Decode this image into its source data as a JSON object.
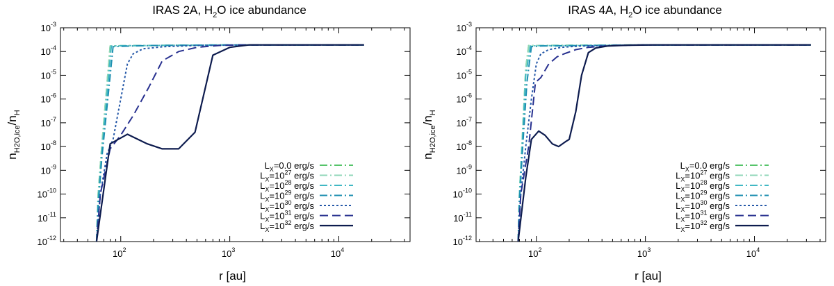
{
  "chart_data": [
    {
      "type": "line",
      "title_prefix": "IRAS 2A,  H",
      "title_sub": "2",
      "title_suffix": "O ice abundance",
      "xlabel": "r [au]",
      "ylabel": {
        "base1": "n",
        "sub1": "H2O,ice",
        "slash": "/",
        "base2": "n",
        "sub2": "H"
      },
      "x_scale": "log",
      "y_scale": "log",
      "xlim": [
        28,
        45000
      ],
      "ylim": [
        1e-12,
        0.001
      ],
      "x_ticks": [
        {
          "base": "10",
          "exp": "2"
        },
        {
          "base": "10",
          "exp": "3"
        },
        {
          "base": "10",
          "exp": "4"
        }
      ],
      "y_ticks": [
        {
          "base": "10",
          "exp": "-12"
        },
        {
          "base": "10",
          "exp": "-11"
        },
        {
          "base": "10",
          "exp": "-10"
        },
        {
          "base": "10",
          "exp": "-9"
        },
        {
          "base": "10",
          "exp": "-8"
        },
        {
          "base": "10",
          "exp": "-7"
        },
        {
          "base": "10",
          "exp": "-6"
        },
        {
          "base": "10",
          "exp": "-5"
        },
        {
          "base": "10",
          "exp": "-4"
        },
        {
          "base": "10",
          "exp": "-3"
        }
      ],
      "legend_position": "bottom-right",
      "series": [
        {
          "name_prefix": "L",
          "name_sub": "X",
          "name_eq": "=0.0",
          "name_exp": "",
          "name_unit": " erg/s",
          "color": "#56c46a",
          "dash": "11,4,2,4",
          "width": 2,
          "x": [
            60,
            62,
            67,
            80,
            100,
            200,
            1000,
            17000
          ],
          "y": [
            1e-12,
            1e-10,
            1e-08,
            0.00017,
            0.000175,
            0.00018,
            0.00019,
            0.00019
          ]
        },
        {
          "name_prefix": "L",
          "name_sub": "X",
          "name_eq": "=10",
          "name_exp": "27",
          "name_unit": " erg/s",
          "color": "#8fd7b8",
          "dash": "11,4,2,4",
          "width": 2,
          "x": [
            60,
            62,
            67,
            80,
            100,
            200,
            1000,
            17000
          ],
          "y": [
            1e-12,
            1e-10,
            1e-08,
            0.00017,
            0.000175,
            0.00018,
            0.00019,
            0.00019
          ]
        },
        {
          "name_prefix": "L",
          "name_sub": "X",
          "name_eq": "=10",
          "name_exp": "28",
          "name_unit": " erg/s",
          "color": "#41b8c4",
          "dash": "11,4,2,4",
          "width": 2,
          "x": [
            60,
            62,
            67,
            82,
            100,
            200,
            1000,
            17000
          ],
          "y": [
            1e-12,
            5e-11,
            5e-09,
            0.00017,
            0.000175,
            0.00018,
            0.00019,
            0.00019
          ]
        },
        {
          "name_prefix": "L",
          "name_sub": "X",
          "name_eq": "=10",
          "name_exp": "29",
          "name_unit": " erg/s",
          "color": "#1d8fb0",
          "dash": "11,4,2,4",
          "width": 2,
          "x": [
            60,
            62,
            67,
            85,
            120,
            200,
            1000,
            17000
          ],
          "y": [
            1e-12,
            3e-11,
            3e-09,
            0.00016,
            0.00017,
            0.00018,
            0.00019,
            0.00019
          ]
        },
        {
          "name_prefix": "L",
          "name_sub": "X",
          "name_eq": "=10",
          "name_exp": "30",
          "name_unit": " erg/s",
          "color": "#2558a8",
          "dash": "3,3",
          "width": 2,
          "x": [
            60,
            65,
            75,
            85,
            100,
            115,
            130,
            160,
            250,
            500,
            1000,
            2000,
            17000
          ],
          "y": [
            1e-12,
            1e-10,
            5e-09,
            2e-08,
            1e-06,
            3e-05,
            8e-05,
            0.00013,
            0.00016,
            0.00018,
            0.000185,
            0.00019,
            0.00019
          ]
        },
        {
          "name_prefix": "L",
          "name_sub": "X",
          "name_eq": "=10",
          "name_exp": "31",
          "name_unit": " erg/s",
          "color": "#27308f",
          "dash": "12,6",
          "width": 2,
          "x": [
            60,
            65,
            80,
            100,
            130,
            180,
            240,
            340,
            500,
            800,
            1200,
            2000,
            17000
          ],
          "y": [
            1e-12,
            1e-10,
            8e-09,
            3e-08,
            2e-07,
            3e-06,
            4e-05,
            0.0001,
            0.00015,
            0.00018,
            0.00019,
            0.00019,
            0.00019
          ]
        },
        {
          "name_prefix": "L",
          "name_sub": "X",
          "name_eq": "=10",
          "name_exp": "32",
          "name_unit": " erg/s",
          "color": "#0d1b4e",
          "dash": "",
          "width": 2.2,
          "x": [
            60,
            80,
            115,
            175,
            240,
            340,
            480,
            700,
            1000,
            1500,
            17000
          ],
          "y": [
            1e-12,
            1.3e-08,
            3.3e-08,
            1.3e-08,
            8e-09,
            8e-09,
            4e-08,
            7e-05,
            0.00015,
            0.00019,
            0.00019
          ]
        }
      ]
    },
    {
      "type": "line",
      "title_prefix": "IRAS 4A,  H",
      "title_sub": "2",
      "title_suffix": "O ice abundance",
      "xlabel": "r [au]",
      "ylabel": {
        "base1": "n",
        "sub1": "H2O,ice",
        "slash": "/",
        "base2": "n",
        "sub2": "H"
      },
      "x_scale": "log",
      "y_scale": "log",
      "xlim": [
        28,
        45000
      ],
      "ylim": [
        1e-12,
        0.001
      ],
      "x_ticks": [
        {
          "base": "10",
          "exp": "2"
        },
        {
          "base": "10",
          "exp": "3"
        },
        {
          "base": "10",
          "exp": "4"
        }
      ],
      "y_ticks": [
        {
          "base": "10",
          "exp": "-12"
        },
        {
          "base": "10",
          "exp": "-11"
        },
        {
          "base": "10",
          "exp": "-10"
        },
        {
          "base": "10",
          "exp": "-9"
        },
        {
          "base": "10",
          "exp": "-8"
        },
        {
          "base": "10",
          "exp": "-7"
        },
        {
          "base": "10",
          "exp": "-6"
        },
        {
          "base": "10",
          "exp": "-5"
        },
        {
          "base": "10",
          "exp": "-4"
        },
        {
          "base": "10",
          "exp": "-3"
        }
      ],
      "legend_position": "bottom-right",
      "series": [
        {
          "name_prefix": "L",
          "name_sub": "X",
          "name_eq": "=0.0",
          "name_exp": "",
          "name_unit": " erg/s",
          "color": "#56c46a",
          "dash": "11,4,2,4",
          "width": 2,
          "x": [
            68,
            70,
            75,
            80,
            85,
            100,
            300,
            1000,
            33000
          ],
          "y": [
            1e-12,
            1e-10,
            5e-08,
            2e-05,
            0.00018,
            0.00018,
            0.000185,
            0.00019,
            0.00019
          ]
        },
        {
          "name_prefix": "L",
          "name_sub": "X",
          "name_eq": "=10",
          "name_exp": "27",
          "name_unit": " erg/s",
          "color": "#8fd7b8",
          "dash": "11,4,2,4",
          "width": 2,
          "x": [
            68,
            70,
            75,
            80,
            85,
            100,
            300,
            1000,
            33000
          ],
          "y": [
            1e-12,
            1e-10,
            5e-08,
            2e-05,
            0.00018,
            0.00018,
            0.000185,
            0.00019,
            0.00019
          ]
        },
        {
          "name_prefix": "L",
          "name_sub": "X",
          "name_eq": "=10",
          "name_exp": "28",
          "name_unit": " erg/s",
          "color": "#41b8c4",
          "dash": "11,4,2,4",
          "width": 2,
          "x": [
            68,
            70,
            75,
            80,
            88,
            100,
            300,
            1000,
            33000
          ],
          "y": [
            1e-12,
            8e-11,
            3e-08,
            1e-05,
            0.00017,
            0.000175,
            0.00018,
            0.00019,
            0.00019
          ]
        },
        {
          "name_prefix": "L",
          "name_sub": "X",
          "name_eq": "=10",
          "name_exp": "29",
          "name_unit": " erg/s",
          "color": "#1d8fb0",
          "dash": "11,4,2,4",
          "width": 2,
          "x": [
            68,
            70,
            75,
            82,
            90,
            110,
            300,
            1000,
            33000
          ],
          "y": [
            1e-12,
            5e-11,
            1e-08,
            5e-06,
            0.00016,
            0.00017,
            0.00018,
            0.00019,
            0.00019
          ]
        },
        {
          "name_prefix": "L",
          "name_sub": "X",
          "name_eq": "=10",
          "name_exp": "30",
          "name_unit": " erg/s",
          "color": "#2558a8",
          "dash": "3,3",
          "width": 2,
          "x": [
            68,
            72,
            80,
            90,
            100,
            110,
            130,
            170,
            250,
            500,
            1000,
            33000
          ],
          "y": [
            1e-12,
            1e-10,
            1e-08,
            1e-06,
            3e-05,
            8e-05,
            0.00012,
            0.00015,
            0.00017,
            0.00018,
            0.00019,
            0.00019
          ]
        },
        {
          "name_prefix": "L",
          "name_sub": "X",
          "name_eq": "=10",
          "name_exp": "31",
          "name_unit": " erg/s",
          "color": "#27308f",
          "dash": "12,6",
          "width": 2,
          "x": [
            68,
            72,
            85,
            98,
            110,
            130,
            155,
            180,
            230,
            300,
            500,
            1000,
            33000
          ],
          "y": [
            1e-12,
            1e-10,
            1e-08,
            5e-06,
            8e-06,
            3e-05,
            6e-05,
            8e-05,
            0.00012,
            0.00015,
            0.00018,
            0.00019,
            0.00019
          ]
        },
        {
          "name_prefix": "L",
          "name_sub": "X",
          "name_eq": "=10",
          "name_exp": "32",
          "name_unit": " erg/s",
          "color": "#0d1b4e",
          "dash": "",
          "width": 2.2,
          "x": [
            68,
            80,
            90,
            105,
            120,
            140,
            160,
            185,
            200,
            230,
            260,
            300,
            350,
            450,
            700,
            1200,
            33000
          ],
          "y": [
            1e-12,
            5e-10,
            2e-08,
            4.5e-08,
            3e-08,
            1.3e-08,
            1e-08,
            1.6e-08,
            2e-08,
            3e-07,
            1e-05,
            9e-05,
            0.00014,
            0.00017,
            0.000185,
            0.00019,
            0.00019
          ]
        }
      ]
    }
  ]
}
